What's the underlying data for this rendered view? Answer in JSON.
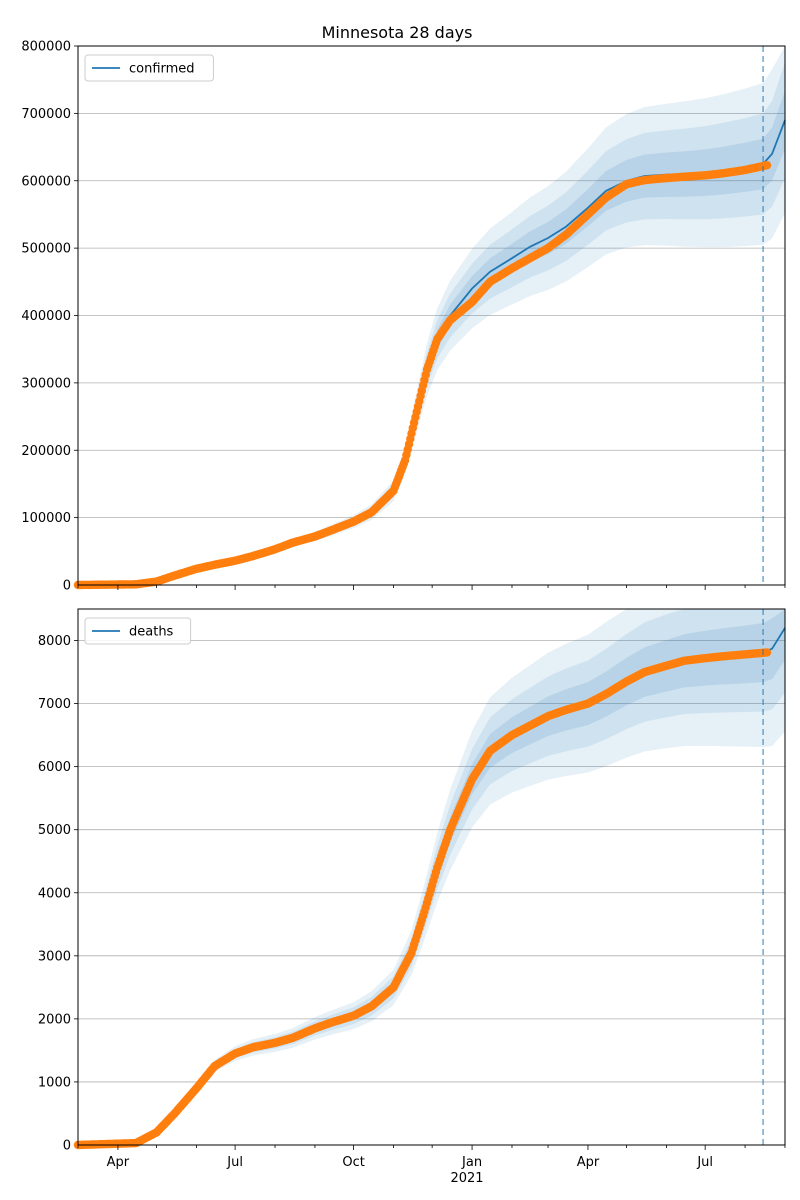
{
  "figure": {
    "title": "Minnesota 28 days"
  },
  "colors": {
    "model_line": "#1f77b4",
    "observed_points": "#ff7f0e",
    "bands": "#1f77b4",
    "forecast_line": "#1f77b4",
    "grid": "#b0b0b0"
  },
  "chart_data": [
    {
      "type": "line",
      "series": [
        {
          "name": "confirmed",
          "kind": "line"
        },
        {
          "kind": "scatter"
        }
      ],
      "legend_position": "top-left",
      "grid": "y-major",
      "xlim": [
        "2020-03-01",
        "2021-09-01"
      ],
      "ylim": [
        0,
        800000
      ],
      "yticks": [
        0,
        100000,
        200000,
        300000,
        400000,
        500000,
        600000,
        700000,
        800000
      ],
      "forecast_start": "2021-08-15",
      "model": [
        [
          "2020-03-01",
          0
        ],
        [
          "2020-04-15",
          1000
        ],
        [
          "2020-05-01",
          6000
        ],
        [
          "2020-05-15",
          15000
        ],
        [
          "2020-06-01",
          25000
        ],
        [
          "2020-06-15",
          31000
        ],
        [
          "2020-07-01",
          36000
        ],
        [
          "2020-07-15",
          43000
        ],
        [
          "2020-08-01",
          53000
        ],
        [
          "2020-08-15",
          63000
        ],
        [
          "2020-09-01",
          72000
        ],
        [
          "2020-09-15",
          82000
        ],
        [
          "2020-10-01",
          94000
        ],
        [
          "2020-10-15",
          108000
        ],
        [
          "2020-11-01",
          140000
        ],
        [
          "2020-11-10",
          185000
        ],
        [
          "2020-11-20",
          265000
        ],
        [
          "2020-11-27",
          320000
        ],
        [
          "2020-12-05",
          365000
        ],
        [
          "2020-12-15",
          400000
        ],
        [
          "2021-01-01",
          440000
        ],
        [
          "2021-01-15",
          465000
        ],
        [
          "2021-02-01",
          485000
        ],
        [
          "2021-02-15",
          502000
        ],
        [
          "2021-03-01",
          515000
        ],
        [
          "2021-03-15",
          532000
        ],
        [
          "2021-04-01",
          560000
        ],
        [
          "2021-04-15",
          585000
        ],
        [
          "2021-05-01",
          600000
        ],
        [
          "2021-05-15",
          607000
        ],
        [
          "2021-06-01",
          609000
        ],
        [
          "2021-06-15",
          610000
        ],
        [
          "2021-07-01",
          612000
        ],
        [
          "2021-07-15",
          615000
        ],
        [
          "2021-08-01",
          620000
        ],
        [
          "2021-08-15",
          625000
        ],
        [
          "2021-08-22",
          640000
        ],
        [
          "2021-09-01",
          690000
        ]
      ],
      "observed": [
        [
          "2020-03-01",
          0
        ],
        [
          "2020-04-15",
          1000
        ],
        [
          "2020-05-01",
          5000
        ],
        [
          "2020-05-15",
          14000
        ],
        [
          "2020-06-01",
          24000
        ],
        [
          "2020-06-15",
          30000
        ],
        [
          "2020-07-01",
          36000
        ],
        [
          "2020-07-15",
          43000
        ],
        [
          "2020-08-01",
          53000
        ],
        [
          "2020-08-15",
          63000
        ],
        [
          "2020-09-01",
          72000
        ],
        [
          "2020-09-15",
          82000
        ],
        [
          "2020-10-01",
          94000
        ],
        [
          "2020-10-15",
          108000
        ],
        [
          "2020-11-01",
          140000
        ],
        [
          "2020-11-10",
          185000
        ],
        [
          "2020-11-20",
          265000
        ],
        [
          "2020-11-27",
          320000
        ],
        [
          "2020-12-05",
          365000
        ],
        [
          "2020-12-15",
          393000
        ],
        [
          "2021-01-01",
          420000
        ],
        [
          "2021-01-15",
          450000
        ],
        [
          "2021-02-01",
          470000
        ],
        [
          "2021-02-15",
          485000
        ],
        [
          "2021-03-01",
          500000
        ],
        [
          "2021-03-15",
          520000
        ],
        [
          "2021-04-01",
          550000
        ],
        [
          "2021-04-15",
          575000
        ],
        [
          "2021-05-01",
          595000
        ],
        [
          "2021-05-15",
          601000
        ],
        [
          "2021-06-01",
          604000
        ],
        [
          "2021-06-15",
          606000
        ],
        [
          "2021-07-01",
          608000
        ],
        [
          "2021-07-15",
          611000
        ],
        [
          "2021-08-01",
          616000
        ],
        [
          "2021-08-18",
          623000
        ]
      ]
    },
    {
      "type": "line",
      "series": [
        {
          "name": "deaths",
          "kind": "line"
        },
        {
          "kind": "scatter"
        }
      ],
      "legend_position": "top-left",
      "grid": "y-major",
      "xlim": [
        "2020-03-01",
        "2021-09-01"
      ],
      "ylim": [
        0,
        8500
      ],
      "yticks": [
        0,
        1000,
        2000,
        3000,
        4000,
        5000,
        6000,
        7000,
        8000
      ],
      "forecast_start": "2021-08-15",
      "model": [
        [
          "2020-03-01",
          0
        ],
        [
          "2020-04-15",
          30
        ],
        [
          "2020-05-01",
          200
        ],
        [
          "2020-05-15",
          500
        ],
        [
          "2020-06-01",
          900
        ],
        [
          "2020-06-15",
          1250
        ],
        [
          "2020-07-01",
          1450
        ],
        [
          "2020-07-15",
          1550
        ],
        [
          "2020-08-01",
          1620
        ],
        [
          "2020-08-15",
          1700
        ],
        [
          "2020-09-01",
          1850
        ],
        [
          "2020-09-15",
          1950
        ],
        [
          "2020-10-01",
          2050
        ],
        [
          "2020-10-15",
          2200
        ],
        [
          "2020-11-01",
          2500
        ],
        [
          "2020-11-15",
          3050
        ],
        [
          "2020-11-25",
          3700
        ],
        [
          "2020-12-05",
          4400
        ],
        [
          "2020-12-15",
          5000
        ],
        [
          "2021-01-01",
          5800
        ],
        [
          "2021-01-15",
          6250
        ],
        [
          "2021-02-01",
          6500
        ],
        [
          "2021-02-15",
          6650
        ],
        [
          "2021-03-01",
          6800
        ],
        [
          "2021-03-15",
          6900
        ],
        [
          "2021-04-01",
          7000
        ],
        [
          "2021-04-15",
          7150
        ],
        [
          "2021-05-01",
          7350
        ],
        [
          "2021-05-15",
          7500
        ],
        [
          "2021-06-01",
          7600
        ],
        [
          "2021-06-15",
          7680
        ],
        [
          "2021-07-01",
          7720
        ],
        [
          "2021-07-15",
          7750
        ],
        [
          "2021-08-01",
          7780
        ],
        [
          "2021-08-15",
          7810
        ],
        [
          "2021-08-22",
          7870
        ],
        [
          "2021-09-01",
          8200
        ]
      ],
      "observed": [
        [
          "2020-03-01",
          0
        ],
        [
          "2020-04-15",
          30
        ],
        [
          "2020-05-01",
          200
        ],
        [
          "2020-05-15",
          500
        ],
        [
          "2020-06-01",
          900
        ],
        [
          "2020-06-15",
          1250
        ],
        [
          "2020-07-01",
          1450
        ],
        [
          "2020-07-15",
          1550
        ],
        [
          "2020-08-01",
          1620
        ],
        [
          "2020-08-15",
          1700
        ],
        [
          "2020-09-01",
          1850
        ],
        [
          "2020-09-15",
          1950
        ],
        [
          "2020-10-01",
          2050
        ],
        [
          "2020-10-15",
          2200
        ],
        [
          "2020-11-01",
          2500
        ],
        [
          "2020-11-15",
          3050
        ],
        [
          "2020-11-25",
          3700
        ],
        [
          "2020-12-05",
          4400
        ],
        [
          "2020-12-15",
          5000
        ],
        [
          "2021-01-01",
          5800
        ],
        [
          "2021-01-15",
          6250
        ],
        [
          "2021-02-01",
          6500
        ],
        [
          "2021-02-15",
          6650
        ],
        [
          "2021-03-01",
          6800
        ],
        [
          "2021-03-15",
          6900
        ],
        [
          "2021-04-01",
          7000
        ],
        [
          "2021-04-15",
          7150
        ],
        [
          "2021-05-01",
          7350
        ],
        [
          "2021-05-15",
          7500
        ],
        [
          "2021-06-01",
          7600
        ],
        [
          "2021-06-15",
          7680
        ],
        [
          "2021-07-01",
          7720
        ],
        [
          "2021-07-15",
          7750
        ],
        [
          "2021-08-01",
          7780
        ],
        [
          "2021-08-18",
          7810
        ]
      ]
    }
  ],
  "x_axis": {
    "ticks": [
      {
        "date": "2020-04-01",
        "label": "Apr"
      },
      {
        "date": "2020-07-01",
        "label": "Jul"
      },
      {
        "date": "2020-10-01",
        "label": "Oct"
      },
      {
        "date": "2021-01-01",
        "label": "Jan"
      },
      {
        "date": "2021-04-01",
        "label": "Apr"
      },
      {
        "date": "2021-07-01",
        "label": "Jul"
      }
    ],
    "year_label": "2021"
  }
}
